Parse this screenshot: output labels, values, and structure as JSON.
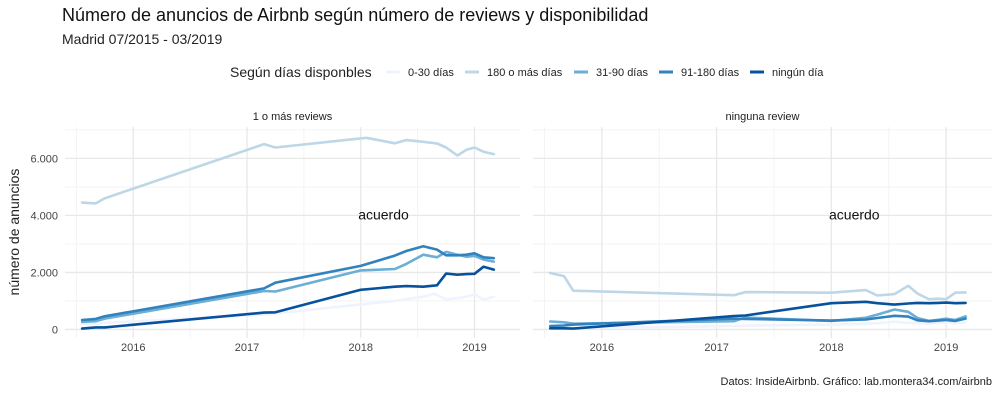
{
  "chart_data": {
    "type": "line",
    "title": "Número de anuncios de Airbnb según número de reviews y disponibilidad",
    "subtitle": "Madrid 07/2015 - 03/2019",
    "caption": "Datos: InsideAirbnb. Gráfico: lab.montera34.com/airbnb",
    "ylabel": "número de anuncios",
    "xlabel": "",
    "legend_title": "Según días disponbles",
    "legend_position": "top",
    "x_ticks": [
      2016,
      2017,
      2018,
      2019
    ],
    "y_ticks": [
      0,
      2000,
      4000,
      6000
    ],
    "y_tick_labels": [
      "0",
      "2.000",
      "4.000",
      "6.000"
    ],
    "xlim": [
      2015.4,
      2019.4
    ],
    "ylim": [
      -300,
      7100
    ],
    "grid": true,
    "colors": {
      "0-30 días": "#eff3ff",
      "180 o más días": "#bdd7e7",
      "31-90 días": "#6baed6",
      "91-180 días": "#3182bd",
      "ningún día": "#08519c"
    },
    "series_order": [
      "0-30 días",
      "180 o más días",
      "31-90 días",
      "91-180 días",
      "ningún día"
    ],
    "panels": [
      {
        "label": "1 o más reviews",
        "annotation": "acuerdo",
        "annotation_pos": [
          2018.2,
          3850
        ],
        "series": [
          {
            "name": "0-30 días",
            "x": [
              2015.55,
              2015.67,
              2015.75,
              2017.15,
              2017.25,
              2018.0,
              2018.3,
              2018.55,
              2018.65,
              2018.75,
              2018.85,
              2018.93,
              2019.0,
              2019.08,
              2019.17
            ],
            "y": [
              200,
              190,
              230,
              520,
              560,
              880,
              1000,
              1150,
              1250,
              1050,
              1100,
              1150,
              1230,
              1050,
              1150
            ]
          },
          {
            "name": "180 o más días",
            "x": [
              2015.55,
              2015.67,
              2015.75,
              2017.15,
              2017.25,
              2018.05,
              2018.3,
              2018.4,
              2018.55,
              2018.67,
              2018.75,
              2018.85,
              2018.93,
              2019.0,
              2019.08,
              2019.17
            ],
            "y": [
              4450,
              4420,
              4600,
              6500,
              6380,
              6720,
              6530,
              6640,
              6580,
              6520,
              6380,
              6100,
              6300,
              6380,
              6230,
              6150
            ]
          },
          {
            "name": "31-90 días",
            "x": [
              2015.55,
              2015.67,
              2015.75,
              2017.15,
              2017.25,
              2018.0,
              2018.3,
              2018.4,
              2018.55,
              2018.67,
              2018.75,
              2018.85,
              2018.93,
              2019.0,
              2019.08,
              2019.17
            ],
            "y": [
              260,
              290,
              380,
              1350,
              1330,
              2070,
              2120,
              2300,
              2620,
              2530,
              2720,
              2620,
              2550,
              2580,
              2450,
              2380
            ]
          },
          {
            "name": "91-180 días",
            "x": [
              2015.55,
              2015.67,
              2015.75,
              2017.15,
              2017.25,
              2018.0,
              2018.3,
              2018.4,
              2018.55,
              2018.67,
              2018.75,
              2018.85,
              2018.93,
              2019.0,
              2019.08,
              2019.17
            ],
            "y": [
              330,
              370,
              460,
              1440,
              1640,
              2230,
              2590,
              2750,
              2920,
              2800,
              2600,
              2600,
              2620,
              2670,
              2530,
              2500
            ]
          },
          {
            "name": "ningún día",
            "x": [
              2015.55,
              2015.67,
              2015.75,
              2017.15,
              2017.25,
              2018.0,
              2018.3,
              2018.4,
              2018.55,
              2018.67,
              2018.75,
              2018.85,
              2018.93,
              2019.0,
              2019.08,
              2019.17
            ],
            "y": [
              30,
              70,
              70,
              590,
              600,
              1390,
              1500,
              1520,
              1500,
              1550,
              1960,
              1920,
              1940,
              1950,
              2200,
              2100
            ]
          }
        ]
      },
      {
        "label": "ninguna review",
        "annotation": "acuerdo",
        "annotation_pos": [
          2018.2,
          3850
        ],
        "series": [
          {
            "name": "0-30 días",
            "x": [
              2015.55,
              2015.67,
              2015.75,
              2017.15,
              2017.25,
              2018.0,
              2018.3,
              2018.4,
              2018.55,
              2018.67,
              2018.75,
              2018.85,
              2018.93,
              2019.0,
              2019.08,
              2019.17
            ],
            "y": [
              30,
              40,
              40,
              120,
              130,
              170,
              200,
              220,
              270,
              230,
              230,
              200,
              230,
              250,
              220,
              250
            ]
          },
          {
            "name": "180 o más días",
            "x": [
              2015.55,
              2015.67,
              2015.75,
              2017.15,
              2017.25,
              2018.0,
              2018.3,
              2018.4,
              2018.55,
              2018.67,
              2018.75,
              2018.85,
              2018.93,
              2019.0,
              2019.08,
              2019.17
            ],
            "y": [
              1980,
              1870,
              1360,
              1200,
              1310,
              1290,
              1380,
              1190,
              1240,
              1530,
              1260,
              1060,
              1080,
              1060,
              1290,
              1300
            ]
          },
          {
            "name": "31-90 días",
            "x": [
              2015.55,
              2015.67,
              2015.75,
              2017.15,
              2017.25,
              2018.0,
              2018.3,
              2018.4,
              2018.55,
              2018.67,
              2018.75,
              2018.85,
              2018.93,
              2019.0,
              2019.08,
              2019.17
            ],
            "y": [
              280,
              250,
              200,
              290,
              420,
              300,
              410,
              520,
              700,
              620,
              400,
              300,
              340,
              380,
              330,
              460
            ]
          },
          {
            "name": "91-180 días",
            "x": [
              2015.55,
              2015.67,
              2015.75,
              2017.15,
              2017.25,
              2018.0,
              2018.3,
              2018.4,
              2018.55,
              2018.67,
              2018.75,
              2018.85,
              2018.93,
              2019.0,
              2019.08,
              2019.17
            ],
            "y": [
              120,
              140,
              170,
              380,
              370,
              310,
              350,
              400,
              480,
              450,
              320,
              290,
              310,
              330,
              300,
              380
            ]
          },
          {
            "name": "ningún día",
            "x": [
              2015.55,
              2015.67,
              2015.75,
              2017.15,
              2017.25,
              2018.0,
              2018.3,
              2018.4,
              2018.55,
              2018.67,
              2018.75,
              2018.85,
              2018.93,
              2019.0,
              2019.08,
              2019.17
            ],
            "y": [
              40,
              40,
              30,
              470,
              490,
              920,
              970,
              920,
              870,
              910,
              930,
              920,
              930,
              940,
              920,
              930
            ]
          }
        ]
      }
    ]
  }
}
